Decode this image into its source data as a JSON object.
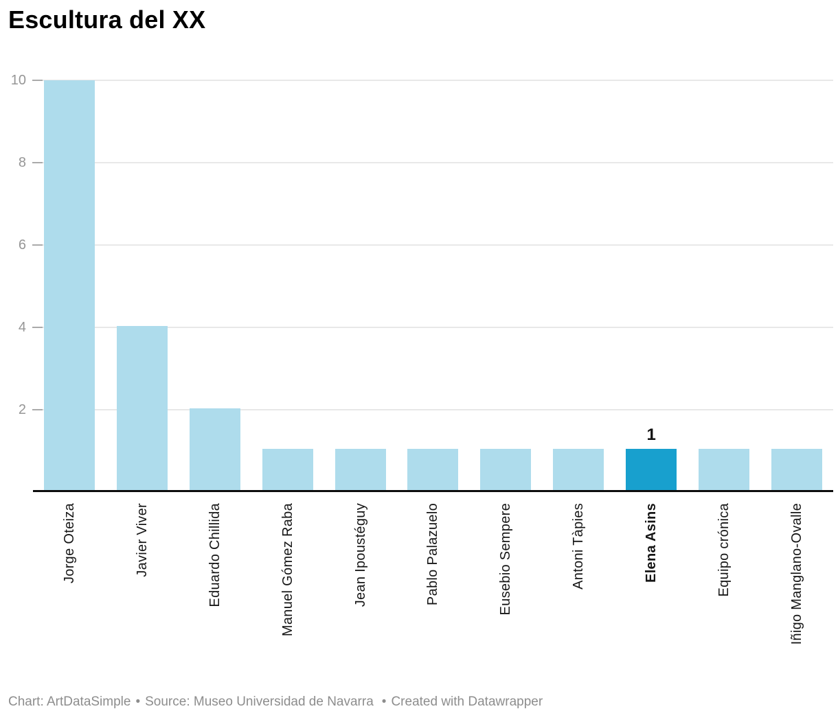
{
  "chart_data": {
    "type": "bar",
    "title": "Escultura del XX",
    "categories": [
      "Jorge Oteiza",
      "Javier Viver",
      "Eduardo Chillida",
      "Manuel Gómez Raba",
      "Jean Ipoustéguy",
      "Pablo Palazuelo",
      "Eusebio Sempere",
      "Antoni Tàpies",
      "Elena Asins",
      "Equipo crónica",
      "Iñigo Manglano-Ovalle"
    ],
    "values": [
      10,
      4,
      2,
      1,
      1,
      1,
      1,
      1,
      1,
      1,
      1
    ],
    "highlight": {
      "index": 8,
      "category": "Elena Asins",
      "data_label": "1"
    },
    "xlabel": "",
    "ylabel": "",
    "y_ticks": [
      10,
      8,
      6,
      4,
      2
    ],
    "ylim": [
      0,
      10
    ],
    "grid": "horizontal",
    "legend": "none",
    "bar_color": "#aedcec",
    "highlight_color": "#18a0ce"
  },
  "footer": {
    "chart_credit": "Chart: ArtDataSimple",
    "separator": "•",
    "source": "Source: Museo Universidad de Navarra",
    "created": "Created with Datawrapper"
  }
}
